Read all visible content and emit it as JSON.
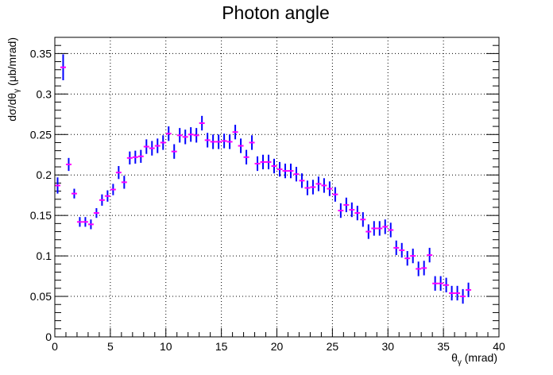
{
  "chart_data": {
    "type": "scatter",
    "title": "Photon angle",
    "xlabel": "θγ (mrad)",
    "xlabel_main": "θ",
    "xlabel_sub": "γ",
    "xlabel_unit": " (mrad)",
    "ylabel": "dσ/dθγ (μb/mrad)",
    "ylabel_main": "dσ/dθ",
    "ylabel_sub": "γ",
    "ylabel_unit": " (μb/mrad)",
    "xlim": [
      0,
      40
    ],
    "ylim": [
      0,
      0.37
    ],
    "x_ticks": [
      0,
      5,
      10,
      15,
      20,
      25,
      30,
      35,
      40
    ],
    "x_tick_labels": [
      "0",
      "5",
      "10",
      "15",
      "20",
      "25",
      "30",
      "35",
      "40"
    ],
    "y_ticks": [
      0,
      0.05,
      0.1,
      0.15,
      0.2,
      0.25,
      0.3,
      0.35
    ],
    "y_tick_labels": [
      "0",
      "0.05",
      "0.1",
      "0.15",
      "0.2",
      "0.25",
      "0.3",
      "0.35"
    ],
    "grid": true,
    "marker_color": "#ff00ff",
    "errorbar_color": "#0000ff",
    "bin_halfwidth": 0.25,
    "series": [
      {
        "x": [
          0.25,
          0.75,
          1.25,
          1.75,
          2.25,
          2.75,
          3.25,
          3.75,
          4.25,
          4.75,
          5.25,
          5.75,
          6.25,
          6.75,
          7.25,
          7.75,
          8.25,
          8.75,
          9.25,
          9.75,
          10.25,
          10.75,
          11.25,
          11.75,
          12.25,
          12.75,
          13.25,
          13.75,
          14.25,
          14.75,
          15.25,
          15.75,
          16.25,
          16.75,
          17.25,
          17.75,
          18.25,
          18.75,
          19.25,
          19.75,
          20.25,
          20.75,
          21.25,
          21.75,
          22.25,
          22.75,
          23.25,
          23.75,
          24.25,
          24.75,
          25.25,
          25.75,
          26.25,
          26.75,
          27.25,
          27.75,
          28.25,
          28.75,
          29.25,
          29.75,
          30.25,
          30.75,
          31.25,
          31.75,
          32.25,
          32.75,
          33.25,
          33.75,
          34.25,
          34.75,
          35.25,
          35.75,
          36.25,
          36.75,
          37.25
        ],
        "y": [
          0.187,
          0.333,
          0.213,
          0.177,
          0.142,
          0.142,
          0.139,
          0.153,
          0.169,
          0.174,
          0.182,
          0.203,
          0.191,
          0.221,
          0.222,
          0.223,
          0.235,
          0.233,
          0.236,
          0.24,
          0.251,
          0.229,
          0.249,
          0.247,
          0.25,
          0.249,
          0.264,
          0.243,
          0.241,
          0.241,
          0.242,
          0.241,
          0.253,
          0.236,
          0.222,
          0.24,
          0.214,
          0.216,
          0.216,
          0.211,
          0.207,
          0.205,
          0.205,
          0.201,
          0.193,
          0.184,
          0.185,
          0.189,
          0.187,
          0.183,
          0.176,
          0.156,
          0.163,
          0.157,
          0.153,
          0.145,
          0.13,
          0.134,
          0.134,
          0.136,
          0.132,
          0.11,
          0.107,
          0.097,
          0.1,
          0.084,
          0.085,
          0.101,
          0.066,
          0.066,
          0.064,
          0.054,
          0.054,
          0.05,
          0.058
        ],
        "err": [
          0.01,
          0.016,
          0.008,
          0.006,
          0.006,
          0.006,
          0.006,
          0.006,
          0.007,
          0.007,
          0.007,
          0.008,
          0.008,
          0.008,
          0.008,
          0.008,
          0.009,
          0.009,
          0.009,
          0.009,
          0.009,
          0.009,
          0.009,
          0.009,
          0.009,
          0.009,
          0.009,
          0.009,
          0.009,
          0.009,
          0.009,
          0.009,
          0.009,
          0.009,
          0.009,
          0.009,
          0.009,
          0.009,
          0.009,
          0.009,
          0.009,
          0.009,
          0.009,
          0.009,
          0.009,
          0.009,
          0.009,
          0.009,
          0.009,
          0.009,
          0.009,
          0.009,
          0.009,
          0.009,
          0.009,
          0.009,
          0.009,
          0.009,
          0.009,
          0.009,
          0.009,
          0.009,
          0.009,
          0.009,
          0.009,
          0.009,
          0.009,
          0.009,
          0.009,
          0.009,
          0.009,
          0.009,
          0.009,
          0.009,
          0.009
        ]
      }
    ]
  }
}
